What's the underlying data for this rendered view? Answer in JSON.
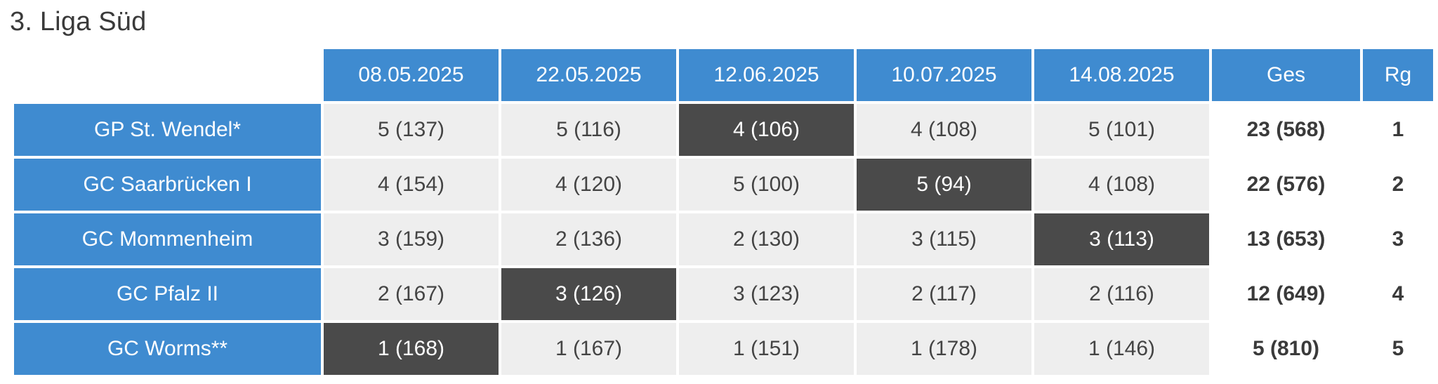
{
  "title": "3. Liga Süd",
  "columns": {
    "dates": [
      "08.05.2025",
      "22.05.2025",
      "12.06.2025",
      "10.07.2025",
      "14.08.2025"
    ],
    "total": "Ges",
    "rank": "Rg"
  },
  "rows": [
    {
      "team": "GP St. Wendel*",
      "results": [
        "5 (137)",
        "5 (116)",
        "4 (106)",
        "4 (108)",
        "5 (101)"
      ],
      "dropped_index": 2,
      "total": "23 (568)",
      "rank": "1"
    },
    {
      "team": "GC Saarbrücken I",
      "results": [
        "4 (154)",
        "4 (120)",
        "5 (100)",
        "5 (94)",
        "4 (108)"
      ],
      "dropped_index": 3,
      "total": "22 (576)",
      "rank": "2"
    },
    {
      "team": "GC Mommenheim",
      "results": [
        "3 (159)",
        "2 (136)",
        "2 (130)",
        "3 (115)",
        "3 (113)"
      ],
      "dropped_index": 4,
      "total": "13 (653)",
      "rank": "3"
    },
    {
      "team": "GC Pfalz II",
      "results": [
        "2 (167)",
        "3 (126)",
        "3 (123)",
        "2 (117)",
        "2 (116)"
      ],
      "dropped_index": 1,
      "total": "12 (649)",
      "rank": "4"
    },
    {
      "team": "GC Worms**",
      "results": [
        "1 (168)",
        "1 (167)",
        "1 (151)",
        "1 (178)",
        "1 (146)"
      ],
      "dropped_index": 0,
      "total": "5 (810)",
      "rank": "5"
    }
  ],
  "colors": {
    "header_blue": "#3f8bd0",
    "cell_grey": "#eeeeee",
    "dropped_dark": "#4a4a4a"
  }
}
